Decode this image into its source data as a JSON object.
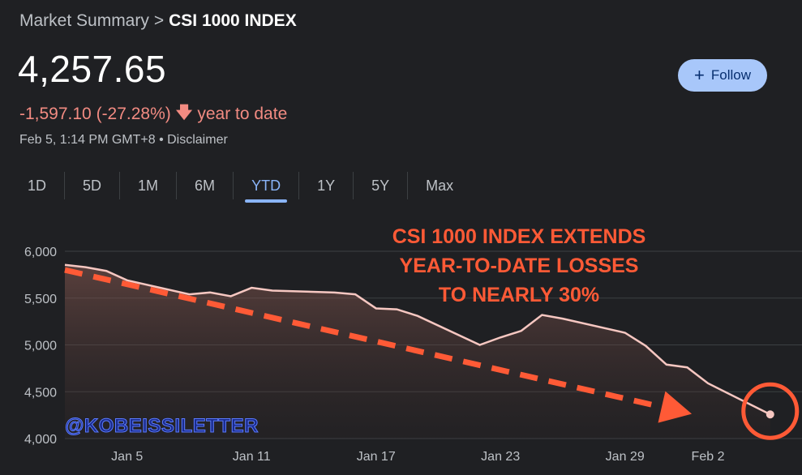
{
  "header": {
    "breadcrumb_parent": "Market Summary",
    "breadcrumb_sep": ">",
    "breadcrumb_current": "CSI 1000 INDEX"
  },
  "quote": {
    "price": "4,257.65",
    "change": "-1,597.10 (-27.28%)",
    "change_suffix": "year to date",
    "timestamp": "Feb 5, 1:14 PM GMT+8 • Disclaimer"
  },
  "follow_button": {
    "label": "Follow",
    "icon": "plus-icon"
  },
  "ranges": {
    "items": [
      "1D",
      "5D",
      "1M",
      "6M",
      "YTD",
      "1Y",
      "5Y",
      "Max"
    ],
    "active": "YTD"
  },
  "annotation": {
    "headline": [
      "CSI 1000 INDEX EXTENDS",
      "YEAR-TO-DATE LOSSES",
      "TO NEARLY 30%"
    ],
    "watermark": "@KOBEISSILETTER"
  },
  "colors": {
    "background": "#1f2023",
    "line": "#f6c7c1",
    "negative": "#f28b82",
    "annotation": "#ff5a36",
    "accent": "#8ab4f8"
  },
  "chart_data": {
    "type": "area",
    "x_tick_labels": [
      "Jan 5",
      "Jan 11",
      "Jan 17",
      "Jan 23",
      "Jan 29",
      "Feb 2"
    ],
    "y_tick_labels": [
      "6,000",
      "5,500",
      "5,000",
      "4,500",
      "4,000"
    ],
    "y_ticks": [
      6000,
      5500,
      5000,
      4500,
      4000
    ],
    "ylim": [
      4000,
      6000
    ],
    "grid": true,
    "series": [
      {
        "x": [
          "Jan 2",
          "Jan 3",
          "Jan 4",
          "Jan 5",
          "Jan 8",
          "Jan 9",
          "Jan 10",
          "Jan 11",
          "Jan 12",
          "Jan 15",
          "Jan 16",
          "Jan 17",
          "Jan 18",
          "Jan 19",
          "Jan 22",
          "Jan 23",
          "Jan 24",
          "Jan 25",
          "Jan 26",
          "Jan 29",
          "Jan 30",
          "Jan 31",
          "Feb 1",
          "Feb 2",
          "Feb 5"
        ],
        "values": [
          5855,
          5830,
          5790,
          5690,
          5540,
          5560,
          5520,
          5610,
          5580,
          5560,
          5540,
          5390,
          5380,
          5310,
          5000,
          5080,
          5150,
          5320,
          5280,
          5130,
          4990,
          4790,
          4760,
          4590,
          4257.65
        ]
      }
    ],
    "trend_arrow": {
      "from": {
        "x": "Jan 2",
        "y": 5800
      },
      "to": {
        "x": "Feb 2",
        "y": 4350
      }
    },
    "highlight_point": {
      "x": "Feb 5",
      "y": 4257.65
    }
  }
}
